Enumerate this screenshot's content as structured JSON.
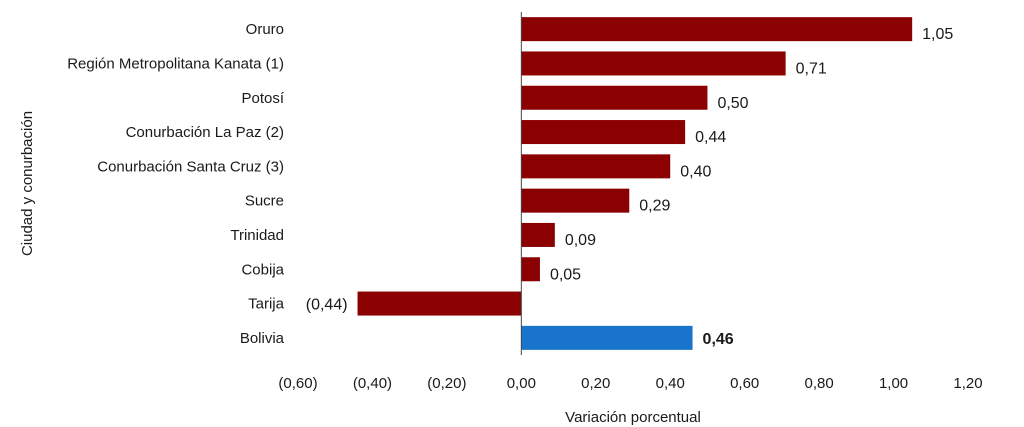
{
  "chart_data": {
    "type": "bar",
    "orientation": "horizontal",
    "categories": [
      "Oruro",
      "Región Metropolitana Kanata (1)",
      "Potosí",
      "Conurbación La Paz (2)",
      "Conurbación Santa Cruz (3)",
      "Sucre",
      "Trinidad",
      "Cobija",
      "Tarija",
      "Bolivia"
    ],
    "values": [
      1.05,
      0.71,
      0.5,
      0.44,
      0.4,
      0.29,
      0.09,
      0.05,
      -0.44,
      0.46
    ],
    "value_labels": [
      "1,05",
      "0,71",
      "0,50",
      "0,44",
      "0,40",
      "0,29",
      "0,09",
      "0,05",
      "(0,44)",
      "0,46"
    ],
    "highlight_index": 9,
    "xlabel": "Variación porcentual",
    "ylabel": "Ciudad y conurbación",
    "xlim": [
      -0.6,
      1.2
    ],
    "xticks": [
      -0.6,
      -0.4,
      -0.2,
      0.0,
      0.2,
      0.4,
      0.6,
      0.8,
      1.0,
      1.2
    ],
    "xtick_labels": [
      "(0,60)",
      "(0,40)",
      "(0,20)",
      "0,00",
      "0,20",
      "0,40",
      "0,60",
      "0,80",
      "1,00",
      "1,20"
    ],
    "grid": false,
    "legend": "none",
    "colors": {
      "bar": "#8b0000",
      "highlight_bar": "#1874cd",
      "axis": "#444444"
    }
  }
}
